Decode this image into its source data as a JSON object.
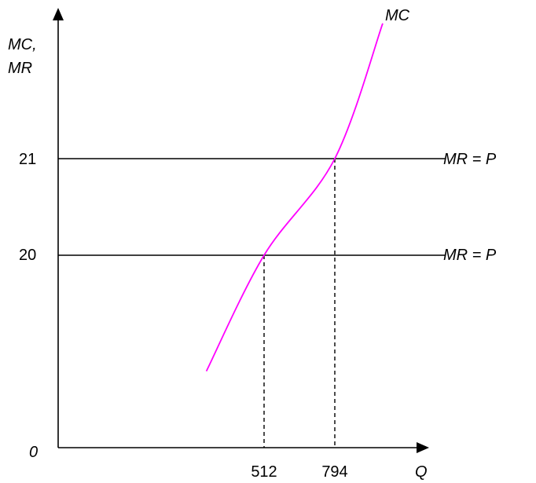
{
  "chart_data": {
    "type": "line",
    "ylabel_line1": "MC,",
    "ylabel_line2": "MR",
    "xlabel": "Q",
    "origin_label": "0",
    "yticks": [
      {
        "value": 20,
        "label": "20"
      },
      {
        "value": 21,
        "label": "21"
      }
    ],
    "xticks": [
      {
        "value": 512,
        "label": "512"
      },
      {
        "value": 794,
        "label": "794"
      }
    ],
    "series": [
      {
        "name": "MC",
        "kind": "curve",
        "color": "#ff00ff",
        "points": [
          [
            282,
            18.8
          ],
          [
            512,
            20
          ],
          [
            794,
            21
          ],
          [
            985,
            22.4
          ]
        ]
      },
      {
        "name": "MR = P",
        "kind": "hline",
        "color": "#000000",
        "y": 21
      },
      {
        "name": "MR = P",
        "kind": "hline",
        "color": "#000000",
        "y": 20
      }
    ],
    "dashed_guides": [
      {
        "x": 512,
        "y": 20
      },
      {
        "x": 794,
        "y": 21
      }
    ]
  }
}
